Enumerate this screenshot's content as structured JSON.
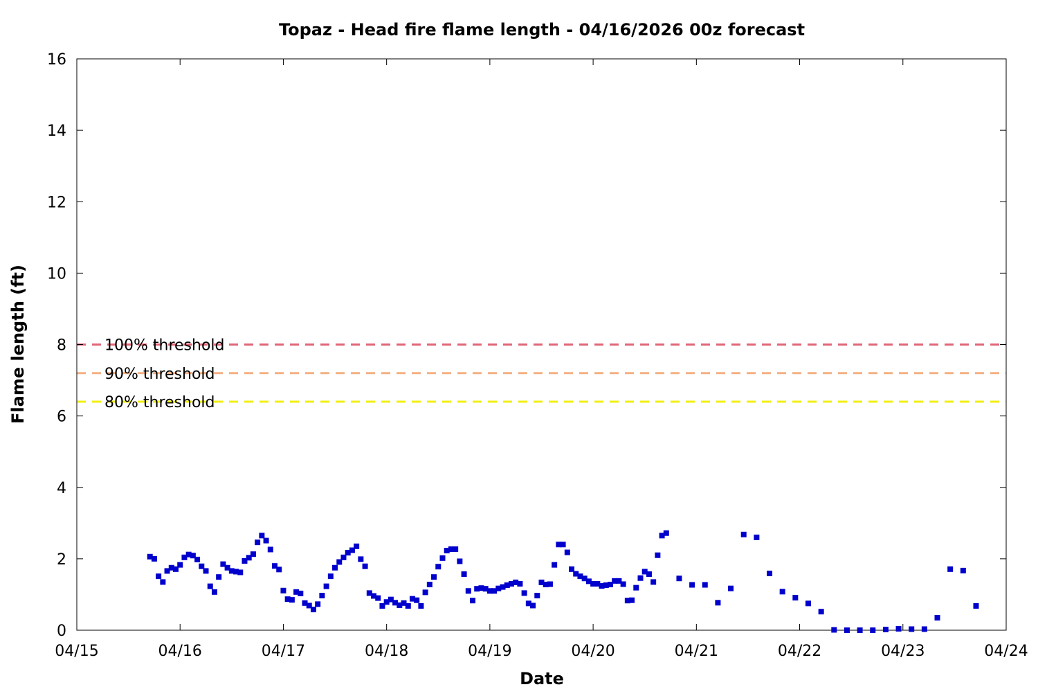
{
  "chart_data": {
    "type": "scatter",
    "title": "Topaz - Head fire flame length - 04/16/2026 00z forecast",
    "xlabel": "Date",
    "ylabel": "Flame length (ft)",
    "x_axis": {
      "type": "date",
      "start": "2026-04-15",
      "end": "2026-04-24",
      "tick_labels": [
        "04/15",
        "04/16",
        "04/17",
        "04/18",
        "04/19",
        "04/20",
        "04/21",
        "04/22",
        "04/23",
        "04/24"
      ]
    },
    "ylim": [
      0,
      16
    ],
    "y_ticks": [
      "0",
      "2",
      "4",
      "6",
      "8",
      "10",
      "12",
      "14",
      "16"
    ],
    "grid": false,
    "marker_color": "#0000cc",
    "thresholds": [
      {
        "label": "100% threshold",
        "value": 8.0,
        "color": "#e06677"
      },
      {
        "label": "90% threshold",
        "value": 7.2,
        "color": "#f4b183"
      },
      {
        "label": "80% threshold",
        "value": 6.4,
        "color": "#f2ef12"
      }
    ],
    "series": [
      {
        "values": [
          [
            "04/15 17:00",
            2.06
          ],
          [
            "04/15 18:00",
            2.0
          ],
          [
            "04/15 19:00",
            1.51
          ],
          [
            "04/15 20:00",
            1.35
          ],
          [
            "04/15 21:00",
            1.66
          ],
          [
            "04/15 22:00",
            1.75
          ],
          [
            "04/15 23:00",
            1.71
          ],
          [
            "04/16 00:00",
            1.83
          ],
          [
            "04/16 01:00",
            2.04
          ],
          [
            "04/16 02:00",
            2.12
          ],
          [
            "04/16 03:00",
            2.09
          ],
          [
            "04/16 04:00",
            1.98
          ],
          [
            "04/16 05:00",
            1.79
          ],
          [
            "04/16 06:00",
            1.66
          ],
          [
            "04/16 07:00",
            1.23
          ],
          [
            "04/16 08:00",
            1.07
          ],
          [
            "04/16 09:00",
            1.49
          ],
          [
            "04/16 10:00",
            1.85
          ],
          [
            "04/16 11:00",
            1.75
          ],
          [
            "04/16 12:00",
            1.66
          ],
          [
            "04/16 13:00",
            1.64
          ],
          [
            "04/16 14:00",
            1.62
          ],
          [
            "04/16 15:00",
            1.94
          ],
          [
            "04/16 16:00",
            2.03
          ],
          [
            "04/16 17:00",
            2.13
          ],
          [
            "04/16 18:00",
            2.46
          ],
          [
            "04/16 19:00",
            2.65
          ],
          [
            "04/16 20:00",
            2.51
          ],
          [
            "04/16 21:00",
            2.26
          ],
          [
            "04/16 22:00",
            1.8
          ],
          [
            "04/16 23:00",
            1.7
          ],
          [
            "04/17 00:00",
            1.11
          ],
          [
            "04/17 01:00",
            0.87
          ],
          [
            "04/17 02:00",
            0.85
          ],
          [
            "04/17 03:00",
            1.07
          ],
          [
            "04/17 04:00",
            1.03
          ],
          [
            "04/17 05:00",
            0.76
          ],
          [
            "04/17 06:00",
            0.69
          ],
          [
            "04/17 07:00",
            0.58
          ],
          [
            "04/17 08:00",
            0.73
          ],
          [
            "04/17 09:00",
            0.97
          ],
          [
            "04/17 10:00",
            1.23
          ],
          [
            "04/17 11:00",
            1.51
          ],
          [
            "04/17 12:00",
            1.75
          ],
          [
            "04/17 13:00",
            1.91
          ],
          [
            "04/17 14:00",
            2.04
          ],
          [
            "04/17 15:00",
            2.17
          ],
          [
            "04/17 16:00",
            2.24
          ],
          [
            "04/17 17:00",
            2.35
          ],
          [
            "04/17 18:00",
            1.99
          ],
          [
            "04/17 19:00",
            1.79
          ],
          [
            "04/17 20:00",
            1.04
          ],
          [
            "04/17 21:00",
            0.96
          ],
          [
            "04/17 22:00",
            0.9
          ],
          [
            "04/17 23:00",
            0.68
          ],
          [
            "04/18 00:00",
            0.79
          ],
          [
            "04/18 01:00",
            0.86
          ],
          [
            "04/18 02:00",
            0.77
          ],
          [
            "04/18 03:00",
            0.7
          ],
          [
            "04/18 04:00",
            0.76
          ],
          [
            "04/18 05:00",
            0.68
          ],
          [
            "04/18 06:00",
            0.88
          ],
          [
            "04/18 07:00",
            0.84
          ],
          [
            "04/18 08:00",
            0.68
          ],
          [
            "04/18 09:00",
            1.06
          ],
          [
            "04/18 10:00",
            1.28
          ],
          [
            "04/18 11:00",
            1.49
          ],
          [
            "04/18 12:00",
            1.78
          ],
          [
            "04/18 13:00",
            2.02
          ],
          [
            "04/18 14:00",
            2.23
          ],
          [
            "04/18 15:00",
            2.27
          ],
          [
            "04/18 16:00",
            2.27
          ],
          [
            "04/18 17:00",
            1.93
          ],
          [
            "04/18 18:00",
            1.57
          ],
          [
            "04/18 19:00",
            1.1
          ],
          [
            "04/18 20:00",
            0.83
          ],
          [
            "04/18 21:00",
            1.16
          ],
          [
            "04/18 22:00",
            1.18
          ],
          [
            "04/18 23:00",
            1.16
          ],
          [
            "04/19 00:00",
            1.1
          ],
          [
            "04/19 01:00",
            1.1
          ],
          [
            "04/19 02:00",
            1.17
          ],
          [
            "04/19 03:00",
            1.21
          ],
          [
            "04/19 04:00",
            1.26
          ],
          [
            "04/19 05:00",
            1.3
          ],
          [
            "04/19 06:00",
            1.34
          ],
          [
            "04/19 07:00",
            1.3
          ],
          [
            "04/19 08:00",
            1.04
          ],
          [
            "04/19 09:00",
            0.75
          ],
          [
            "04/19 10:00",
            0.69
          ],
          [
            "04/19 11:00",
            0.97
          ],
          [
            "04/19 12:00",
            1.34
          ],
          [
            "04/19 13:00",
            1.28
          ],
          [
            "04/19 14:00",
            1.29
          ],
          [
            "04/19 15:00",
            1.83
          ],
          [
            "04/19 16:00",
            2.4
          ],
          [
            "04/19 17:00",
            2.4
          ],
          [
            "04/19 18:00",
            2.18
          ],
          [
            "04/19 19:00",
            1.71
          ],
          [
            "04/19 20:00",
            1.58
          ],
          [
            "04/19 21:00",
            1.51
          ],
          [
            "04/19 22:00",
            1.45
          ],
          [
            "04/19 23:00",
            1.37
          ],
          [
            "04/20 00:00",
            1.3
          ],
          [
            "04/20 01:00",
            1.3
          ],
          [
            "04/20 02:00",
            1.24
          ],
          [
            "04/20 03:00",
            1.26
          ],
          [
            "04/20 04:00",
            1.28
          ],
          [
            "04/20 05:00",
            1.38
          ],
          [
            "04/20 06:00",
            1.38
          ],
          [
            "04/20 07:00",
            1.29
          ],
          [
            "04/20 08:00",
            0.83
          ],
          [
            "04/20 09:00",
            0.84
          ],
          [
            "04/20 10:00",
            1.19
          ],
          [
            "04/20 11:00",
            1.46
          ],
          [
            "04/20 12:00",
            1.64
          ],
          [
            "04/20 13:00",
            1.57
          ],
          [
            "04/20 14:00",
            1.35
          ],
          [
            "04/20 15:00",
            2.1
          ],
          [
            "04/20 16:00",
            2.65
          ],
          [
            "04/20 17:00",
            2.72
          ],
          [
            "04/20 20:00",
            1.45
          ],
          [
            "04/20 23:00",
            1.27
          ],
          [
            "04/21 02:00",
            1.27
          ],
          [
            "04/21 05:00",
            0.77
          ],
          [
            "04/21 08:00",
            1.17
          ],
          [
            "04/21 11:00",
            2.68
          ],
          [
            "04/21 14:00",
            2.6
          ],
          [
            "04/21 17:00",
            1.59
          ],
          [
            "04/21 20:00",
            1.08
          ],
          [
            "04/21 23:00",
            0.91
          ],
          [
            "04/22 02:00",
            0.75
          ],
          [
            "04/22 05:00",
            0.52
          ],
          [
            "04/22 08:00",
            0.01
          ],
          [
            "04/22 11:00",
            0.0
          ],
          [
            "04/22 14:00",
            0.0
          ],
          [
            "04/22 17:00",
            0.0
          ],
          [
            "04/22 20:00",
            0.02
          ],
          [
            "04/22 23:00",
            0.04
          ],
          [
            "04/23 02:00",
            0.03
          ],
          [
            "04/23 05:00",
            0.03
          ],
          [
            "04/23 08:00",
            0.35
          ],
          [
            "04/23 11:00",
            1.71
          ],
          [
            "04/23 14:00",
            1.67
          ],
          [
            "04/23 17:00",
            0.68
          ]
        ]
      }
    ]
  }
}
